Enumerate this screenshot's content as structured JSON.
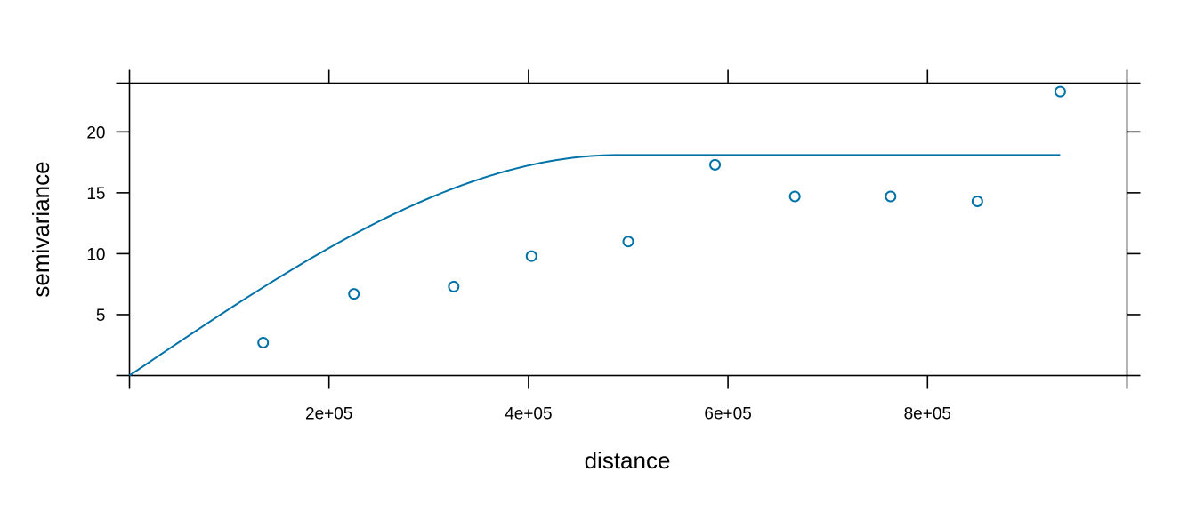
{
  "chart_data": {
    "type": "scatter",
    "title": "",
    "xlabel": "distance",
    "ylabel": "semivariance",
    "xlim": [
      0,
      1000000
    ],
    "ylim": [
      0,
      24
    ],
    "x_ticks": [
      {
        "value": 0,
        "label": ""
      },
      {
        "value": 200000,
        "label": "2e+05"
      },
      {
        "value": 400000,
        "label": "4e+05"
      },
      {
        "value": 600000,
        "label": "6e+05"
      },
      {
        "value": 800000,
        "label": "8e+05"
      },
      {
        "value": 1000000,
        "label": ""
      }
    ],
    "y_ticks": [
      {
        "value": 0,
        "label": ""
      },
      {
        "value": 5,
        "label": "5"
      },
      {
        "value": 10,
        "label": "10"
      },
      {
        "value": 15,
        "label": "15"
      },
      {
        "value": 20,
        "label": "20"
      },
      {
        "value": 24,
        "label": ""
      }
    ],
    "grid": false,
    "color": "#0072A8",
    "points": [
      {
        "x": 134000,
        "y": 2.7
      },
      {
        "x": 225000,
        "y": 6.7
      },
      {
        "x": 325000,
        "y": 7.3
      },
      {
        "x": 403000,
        "y": 9.8
      },
      {
        "x": 500000,
        "y": 11.0
      },
      {
        "x": 587000,
        "y": 17.3
      },
      {
        "x": 667000,
        "y": 14.7
      },
      {
        "x": 763000,
        "y": 14.7
      },
      {
        "x": 850000,
        "y": 14.3
      },
      {
        "x": 933000,
        "y": 23.3
      }
    ],
    "model": {
      "type": "spherical",
      "nugget": 0,
      "psill": 18.1,
      "range": 490000,
      "x_max": 933000
    }
  }
}
